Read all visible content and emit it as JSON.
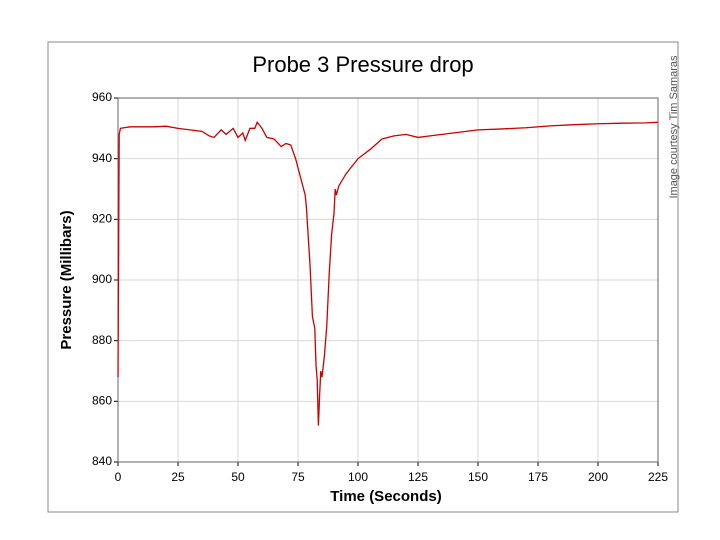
{
  "chart_data": {
    "type": "line",
    "title": "Probe 3 Pressure drop",
    "xlabel": "Time (Seconds)",
    "ylabel": "Pressure (Millibars)",
    "annotation": "Image courtesy Tim Samaras",
    "x": [
      0,
      0.5,
      1,
      5,
      10,
      15,
      20,
      25,
      30,
      35,
      38,
      40,
      43,
      45,
      48,
      50,
      52,
      53,
      55,
      57,
      58,
      60,
      62,
      65,
      68,
      70,
      72,
      74,
      76,
      78,
      78.5,
      80,
      81,
      82,
      82.5,
      83,
      83.5,
      84,
      84.5,
      85,
      86,
      87,
      88,
      89,
      90,
      90.5,
      91,
      92,
      95,
      98,
      100,
      105,
      110,
      115,
      120,
      125,
      130,
      140,
      150,
      160,
      170,
      180,
      190,
      200,
      210,
      220,
      225
    ],
    "series": [
      {
        "name": "Pressure",
        "color": "#cc0000",
        "values": [
          868,
          948,
          950,
          950.5,
          950.5,
          950.5,
          950.7,
          950,
          949.5,
          949,
          947.5,
          947,
          949.5,
          948,
          950,
          947,
          948.5,
          946,
          950,
          950,
          952,
          950,
          947,
          946.5,
          944,
          945,
          944.5,
          940,
          934,
          928,
          924,
          905,
          888,
          884,
          872,
          867,
          852,
          862,
          870,
          868,
          875,
          885,
          902,
          915,
          922,
          930,
          928,
          931,
          935,
          938,
          940,
          943,
          946.5,
          947.5,
          948,
          947,
          947.5,
          948.5,
          949.5,
          949.8,
          950.2,
          950.8,
          951.2,
          951.5,
          951.7,
          951.8,
          952
        ]
      }
    ],
    "xlim": [
      0,
      225
    ],
    "ylim": [
      840,
      960
    ],
    "xticks": [
      0,
      25,
      50,
      75,
      100,
      125,
      150,
      175,
      200,
      225
    ],
    "yticks": [
      840,
      860,
      880,
      900,
      920,
      940,
      960
    ],
    "grid": true
  }
}
